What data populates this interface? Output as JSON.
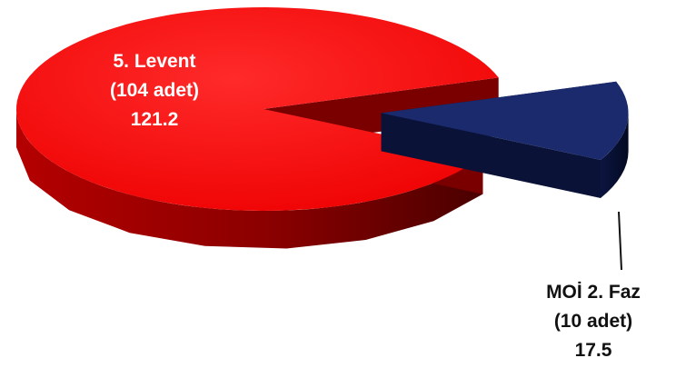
{
  "chart_data": {
    "type": "pie",
    "style": "3d-exploded",
    "slices": [
      {
        "name": "5. Levent",
        "count_label": "(104 adet)",
        "value": 121.2,
        "color": "#ff1a1a"
      },
      {
        "name": "MOİ 2. Faz",
        "count_label": "(10 adet)",
        "value": 17.5,
        "color": "#1a2a6c"
      }
    ]
  }
}
